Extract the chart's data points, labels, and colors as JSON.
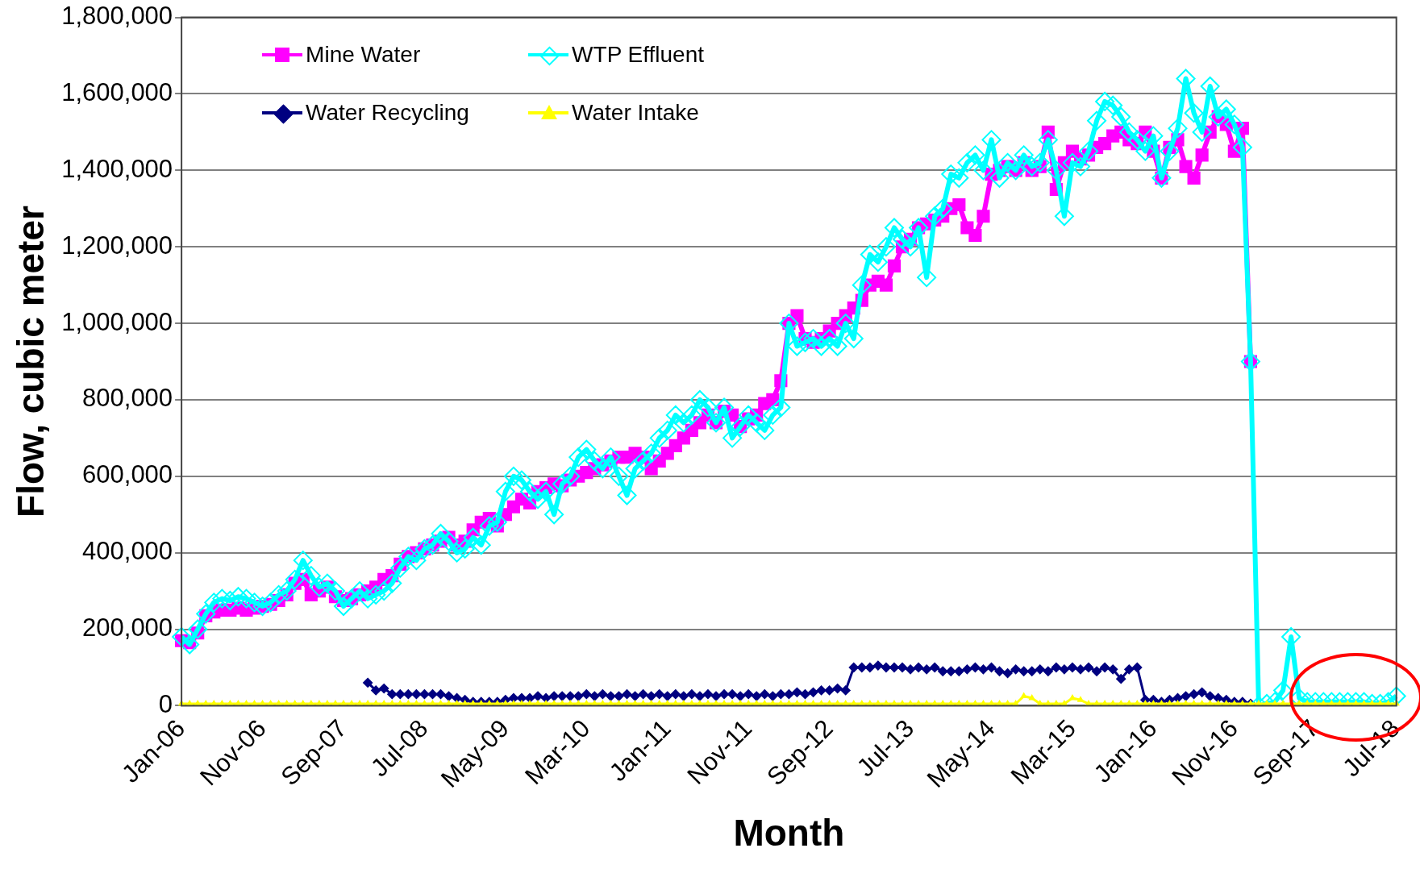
{
  "chart_data": {
    "type": "line",
    "xlabel": "Month",
    "ylabel": "Flow, cubic meter",
    "categories": [
      "Jan-06",
      null,
      null,
      null,
      null,
      null,
      null,
      null,
      null,
      null,
      "Nov-06",
      null,
      null,
      null,
      null,
      null,
      null,
      null,
      null,
      null,
      "Sep-07",
      null,
      null,
      null,
      null,
      null,
      null,
      null,
      null,
      null,
      "Jul-08",
      null,
      null,
      null,
      null,
      null,
      null,
      null,
      null,
      null,
      "May-09",
      null,
      null,
      null,
      null,
      null,
      null,
      null,
      null,
      null,
      "Mar-10",
      null,
      null,
      null,
      null,
      null,
      null,
      null,
      null,
      null,
      "Jan-11",
      null,
      null,
      null,
      null,
      null,
      null,
      null,
      null,
      null,
      "Nov-11",
      null,
      null,
      null,
      null,
      null,
      null,
      null,
      null,
      null,
      "Sep-12",
      null,
      null,
      null,
      null,
      null,
      null,
      null,
      null,
      null,
      "Jul-13",
      null,
      null,
      null,
      null,
      null,
      null,
      null,
      null,
      null,
      "May-14",
      null,
      null,
      null,
      null,
      null,
      null,
      null,
      null,
      null,
      "Mar-15",
      null,
      null,
      null,
      null,
      null,
      null,
      null,
      null,
      null,
      "Jan-16",
      null,
      null,
      null,
      null,
      null,
      null,
      null,
      null,
      null,
      "Nov-16",
      null,
      null,
      null,
      null,
      null,
      null,
      null,
      null,
      null,
      "Sep-17",
      null,
      null,
      null,
      null,
      null,
      null,
      null,
      null,
      null,
      "Jul-18"
    ],
    "series": [
      {
        "name": "Mine Water",
        "color": "#ff00ff",
        "marker": "square",
        "values": [
          170000,
          165000,
          190000,
          235000,
          245000,
          250000,
          250000,
          255000,
          250000,
          255000,
          260000,
          265000,
          275000,
          290000,
          320000,
          330000,
          290000,
          300000,
          310000,
          285000,
          275000,
          280000,
          290000,
          300000,
          310000,
          330000,
          340000,
          370000,
          390000,
          400000,
          410000,
          420000,
          430000,
          440000,
          420000,
          430000,
          460000,
          480000,
          490000,
          470000,
          500000,
          520000,
          540000,
          530000,
          560000,
          570000,
          580000,
          575000,
          590000,
          600000,
          610000,
          620000,
          630000,
          640000,
          650000,
          650000,
          660000,
          650000,
          620000,
          640000,
          660000,
          680000,
          700000,
          720000,
          740000,
          760000,
          740000,
          770000,
          760000,
          730000,
          750000,
          760000,
          790000,
          800000,
          850000,
          1000000,
          1020000,
          960000,
          950000,
          960000,
          980000,
          1000000,
          1020000,
          1040000,
          1060000,
          1100000,
          1110000,
          1100000,
          1150000,
          1200000,
          1220000,
          1250000,
          1260000,
          1270000,
          1280000,
          1300000,
          1310000,
          1250000,
          1230000,
          1280000,
          1390000,
          1400000,
          1410000,
          1400000,
          1420000,
          1400000,
          1410000,
          1500000,
          1350000,
          1420000,
          1450000,
          1430000,
          1440000,
          1460000,
          1470000,
          1490000,
          1500000,
          1480000,
          1470000,
          1500000,
          1450000,
          1380000,
          1460000,
          1480000,
          1410000,
          1380000,
          1440000,
          1500000,
          1540000,
          1520000,
          1450000,
          1510000,
          900000,
          null,
          null,
          null,
          null,
          null,
          null,
          null,
          null,
          null,
          null,
          null,
          null,
          null,
          null,
          null,
          null,
          null,
          null
        ]
      },
      {
        "name": "WTP Effluent",
        "color": "#00ffff",
        "marker": "diamond",
        "values": [
          180000,
          160000,
          200000,
          240000,
          270000,
          280000,
          275000,
          285000,
          280000,
          270000,
          260000,
          270000,
          290000,
          300000,
          330000,
          380000,
          340000,
          310000,
          320000,
          300000,
          260000,
          280000,
          300000,
          280000,
          290000,
          300000,
          320000,
          360000,
          390000,
          380000,
          410000,
          420000,
          450000,
          430000,
          400000,
          410000,
          440000,
          420000,
          470000,
          480000,
          560000,
          600000,
          590000,
          560000,
          540000,
          560000,
          500000,
          580000,
          600000,
          650000,
          670000,
          640000,
          620000,
          650000,
          600000,
          550000,
          620000,
          640000,
          660000,
          700000,
          720000,
          760000,
          740000,
          760000,
          800000,
          780000,
          740000,
          780000,
          700000,
          730000,
          760000,
          740000,
          720000,
          760000,
          780000,
          1000000,
          940000,
          950000,
          960000,
          940000,
          960000,
          940000,
          1000000,
          960000,
          1100000,
          1180000,
          1160000,
          1200000,
          1250000,
          1220000,
          1200000,
          1250000,
          1120000,
          1280000,
          1300000,
          1390000,
          1380000,
          1420000,
          1440000,
          1400000,
          1480000,
          1380000,
          1420000,
          1400000,
          1440000,
          1410000,
          1420000,
          1480000,
          1400000,
          1280000,
          1420000,
          1410000,
          1450000,
          1530000,
          1580000,
          1570000,
          1540000,
          1500000,
          1480000,
          1450000,
          1490000,
          1380000,
          1450000,
          1510000,
          1640000,
          1550000,
          1500000,
          1620000,
          1540000,
          1560000,
          1520000,
          1460000,
          900000,
          0,
          5000,
          10000,
          40000,
          180000,
          20000,
          10000,
          10000,
          10000,
          10000,
          10000,
          10000,
          10000,
          10000,
          5000,
          5000,
          10000,
          25000
        ]
      },
      {
        "name": "Water Recycling",
        "color": "#000080",
        "marker": "diamond",
        "values": [
          null,
          null,
          null,
          null,
          null,
          null,
          null,
          null,
          null,
          null,
          null,
          null,
          null,
          null,
          null,
          null,
          null,
          null,
          null,
          null,
          null,
          null,
          null,
          60000,
          40000,
          45000,
          30000,
          30000,
          30000,
          30000,
          30000,
          30000,
          30000,
          25000,
          20000,
          15000,
          10000,
          10000,
          10000,
          10000,
          15000,
          20000,
          20000,
          20000,
          25000,
          20000,
          25000,
          25000,
          25000,
          25000,
          30000,
          25000,
          30000,
          25000,
          25000,
          30000,
          25000,
          30000,
          25000,
          30000,
          25000,
          30000,
          25000,
          30000,
          25000,
          30000,
          25000,
          30000,
          30000,
          25000,
          30000,
          25000,
          30000,
          25000,
          30000,
          30000,
          35000,
          30000,
          35000,
          40000,
          40000,
          45000,
          40000,
          100000,
          100000,
          100000,
          105000,
          100000,
          100000,
          100000,
          95000,
          100000,
          95000,
          100000,
          90000,
          90000,
          90000,
          95000,
          100000,
          95000,
          100000,
          90000,
          85000,
          95000,
          90000,
          90000,
          95000,
          90000,
          100000,
          95000,
          100000,
          95000,
          100000,
          90000,
          100000,
          95000,
          70000,
          95000,
          100000,
          15000,
          15000,
          10000,
          15000,
          20000,
          25000,
          30000,
          35000,
          25000,
          20000,
          15000,
          10000,
          10000,
          5000,
          null,
          null,
          null,
          null,
          null,
          null,
          null,
          null,
          null,
          null,
          null,
          null,
          null,
          null,
          null,
          null,
          null,
          null
        ]
      },
      {
        "name": "Water Intake",
        "color": "#ffff00",
        "marker": "triangle",
        "values": [
          5000,
          5000,
          5000,
          5000,
          5000,
          5000,
          5000,
          5000,
          5000,
          5000,
          5000,
          5000,
          5000,
          5000,
          5000,
          5000,
          5000,
          5000,
          5000,
          5000,
          5000,
          5000,
          5000,
          5000,
          5000,
          5000,
          5000,
          5000,
          5000,
          5000,
          5000,
          5000,
          5000,
          5000,
          5000,
          5000,
          5000,
          5000,
          5000,
          5000,
          5000,
          5000,
          5000,
          5000,
          5000,
          5000,
          5000,
          5000,
          5000,
          5000,
          5000,
          5000,
          5000,
          5000,
          5000,
          5000,
          5000,
          5000,
          5000,
          5000,
          5000,
          5000,
          5000,
          5000,
          5000,
          5000,
          5000,
          5000,
          5000,
          5000,
          5000,
          5000,
          5000,
          5000,
          5000,
          5000,
          5000,
          5000,
          5000,
          5000,
          5000,
          5000,
          5000,
          5000,
          5000,
          5000,
          5000,
          5000,
          5000,
          5000,
          5000,
          5000,
          5000,
          5000,
          5000,
          5000,
          5000,
          5000,
          5000,
          5000,
          5000,
          5000,
          5000,
          5000,
          25000,
          20000,
          5000,
          5000,
          5000,
          5000,
          20000,
          15000,
          5000,
          5000,
          5000,
          5000,
          5000,
          5000,
          5000,
          5000,
          5000,
          5000,
          5000,
          5000,
          5000,
          5000,
          5000,
          5000,
          5000,
          5000,
          5000,
          5000,
          5000,
          5000,
          5000,
          5000,
          5000,
          5000,
          5000,
          5000,
          5000,
          5000,
          5000,
          5000,
          5000,
          5000,
          5000,
          5000,
          5000,
          5000,
          5000
        ]
      }
    ],
    "ylim": [
      0,
      1800000
    ],
    "yticks": [
      0,
      {
        "value": 200000,
        "label": "200,000"
      },
      {
        "value": 400000,
        "label": "400,000"
      },
      {
        "value": 600000,
        "label": "600,000"
      },
      {
        "value": 800000,
        "label": "800,000"
      },
      {
        "value": 1000000,
        "label": "1,000,000"
      },
      {
        "value": 1200000,
        "label": "1,200,000"
      },
      {
        "value": 1400000,
        "label": "1,400,000"
      },
      {
        "value": 1600000,
        "label": "1,600,000"
      },
      {
        "value": 1800000,
        "label": "1,800,000"
      }
    ],
    "grid": "y",
    "legend": "top left"
  }
}
